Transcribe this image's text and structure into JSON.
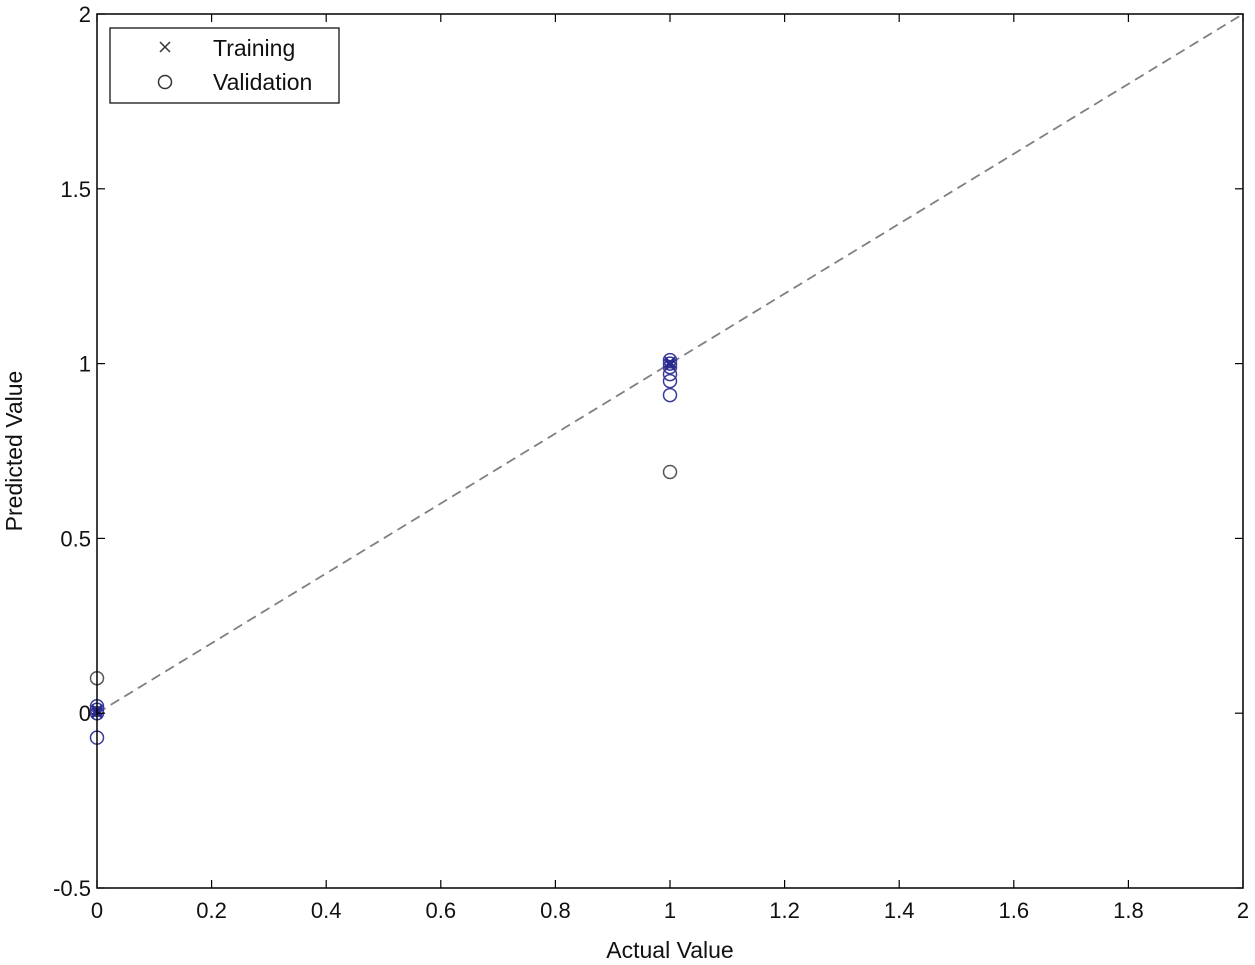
{
  "chart_data": {
    "type": "scatter",
    "title": "",
    "xlabel": "Actual Value",
    "ylabel": "Predicted Value",
    "xlim": [
      0,
      2
    ],
    "ylim": [
      -0.5,
      2
    ],
    "xticks": [
      "0",
      "0.2",
      "0.4",
      "0.6",
      "0.8",
      "1",
      "1.2",
      "1.4",
      "1.6",
      "1.8",
      "2"
    ],
    "yticks": [
      "-0.5",
      "0",
      "0.5",
      "1",
      "1.5",
      "2"
    ],
    "grid": false,
    "legend": {
      "placement": "top-left",
      "entries": [
        {
          "label": "Training",
          "marker": "x"
        },
        {
          "label": "Validation",
          "marker": "o"
        }
      ]
    },
    "reference_line": {
      "from": [
        0,
        0
      ],
      "to": [
        2,
        2
      ],
      "style": "dashed",
      "color": "#808080"
    },
    "series": [
      {
        "name": "Training",
        "marker": "x",
        "color": "#2b2b8f",
        "points": [
          [
            0,
            0.0
          ],
          [
            0,
            0.005
          ],
          [
            0,
            0.01
          ],
          [
            1,
            1.0
          ],
          [
            1,
            0.995
          ],
          [
            1,
            1.005
          ]
        ]
      },
      {
        "name": "Validation",
        "marker": "o",
        "color": "#3a3a9a",
        "points": [
          [
            0,
            0.1
          ],
          [
            0,
            0.02
          ],
          [
            0,
            0.01
          ],
          [
            0,
            0.0
          ],
          [
            0,
            -0.07
          ],
          [
            1,
            1.01
          ],
          [
            1,
            1.0
          ],
          [
            1,
            0.99
          ],
          [
            1,
            0.97
          ],
          [
            1,
            0.95
          ],
          [
            1,
            0.91
          ],
          [
            1,
            0.69
          ]
        ]
      }
    ]
  }
}
